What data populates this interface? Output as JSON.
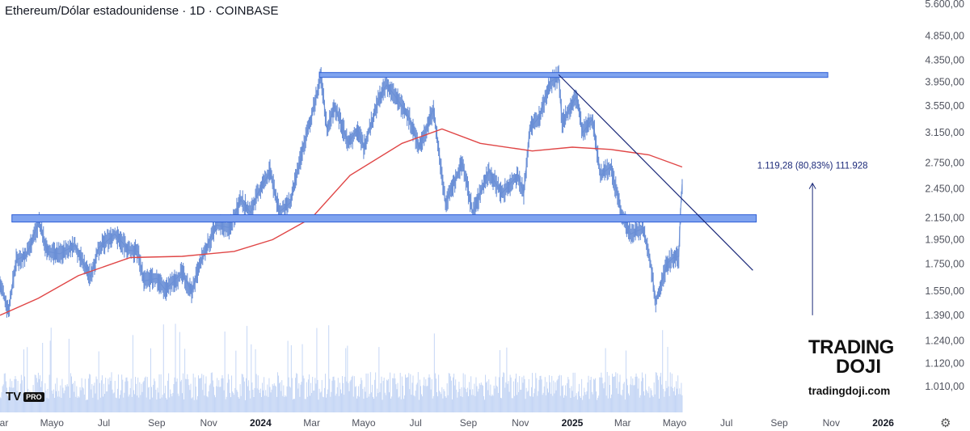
{
  "header": {
    "title": "Ethereum/Dólar estadounidense · 1D · COINBASE"
  },
  "watermark": {
    "tv_logo": "TV",
    "tv_badge": "PRO"
  },
  "brand": {
    "line1": "TRADING",
    "line2": "DOJI",
    "url": "tradingdoji.com"
  },
  "colors": {
    "price_line": "#2962ff",
    "candles": "#6a8fd6",
    "ma": "#e04646",
    "band_fill": "#7fa3ef",
    "band_stroke": "#2f5fd6",
    "trendline": "#1c2a7a",
    "volume": "#c5d6f5",
    "annotation": "#1c2a7a",
    "axis_text": "#50535e"
  },
  "chart_data": {
    "type": "line",
    "title": "Ethereum/Dólar estadounidense · 1D · COINBASE",
    "y_scale": "log",
    "ylim": [
      900,
      5700
    ],
    "y_ticks": [
      "5.600,00",
      "4.850,00",
      "4.350,00",
      "3.950,00",
      "3.550,00",
      "3.150,00",
      "2.750,00",
      "2.450,00",
      "2.150,00",
      "1.950,00",
      "1.750,00",
      "1.550,00",
      "1.390,00",
      "1.240,00",
      "1.120,00",
      "1.010,00"
    ],
    "y_tick_values": [
      5600,
      4850,
      4350,
      3950,
      3550,
      3150,
      2750,
      2450,
      2150,
      1950,
      1750,
      1550,
      1390,
      1240,
      1120,
      1010
    ],
    "x_ticks": [
      "Mar",
      "Mayo",
      "Jul",
      "Sep",
      "Nov",
      "2024",
      "Mar",
      "Mayo",
      "Jul",
      "Sep",
      "Nov",
      "2025",
      "Mar",
      "Mayo",
      "Jul",
      "Sep",
      "Nov",
      "2026"
    ],
    "x_tick_dates": [
      "2023-03-01",
      "2023-05-01",
      "2023-07-01",
      "2023-09-01",
      "2023-11-01",
      "2024-01-01",
      "2024-03-01",
      "2024-05-01",
      "2024-07-01",
      "2024-09-01",
      "2024-11-01",
      "2025-01-01",
      "2025-03-01",
      "2025-05-01",
      "2025-07-01",
      "2025-09-01",
      "2025-11-01",
      "2026-01-01"
    ],
    "x_range": [
      "2023-03-01",
      "2026-02-15"
    ],
    "series": [
      {
        "name": "",
        "values": [
          [
            "2023-03-01",
            1600
          ],
          [
            "2023-03-11",
            1420
          ],
          [
            "2023-03-20",
            1780
          ],
          [
            "2023-04-01",
            1820
          ],
          [
            "2023-04-16",
            2120
          ],
          [
            "2023-04-25",
            1850
          ],
          [
            "2023-05-10",
            1830
          ],
          [
            "2023-05-28",
            1900
          ],
          [
            "2023-06-15",
            1650
          ],
          [
            "2023-06-25",
            1880
          ],
          [
            "2023-07-14",
            2000
          ],
          [
            "2023-07-30",
            1860
          ],
          [
            "2023-08-10",
            1850
          ],
          [
            "2023-08-17",
            1620
          ],
          [
            "2023-09-01",
            1640
          ],
          [
            "2023-09-11",
            1560
          ],
          [
            "2023-10-01",
            1680
          ],
          [
            "2023-10-12",
            1540
          ],
          [
            "2023-10-24",
            1790
          ],
          [
            "2023-11-10",
            2080
          ],
          [
            "2023-11-25",
            2060
          ],
          [
            "2023-12-09",
            2330
          ],
          [
            "2023-12-20",
            2200
          ],
          [
            "2023-12-28",
            2380
          ],
          [
            "2024-01-12",
            2650
          ],
          [
            "2024-01-23",
            2210
          ],
          [
            "2024-02-05",
            2300
          ],
          [
            "2024-02-20",
            2950
          ],
          [
            "2024-03-01",
            3400
          ],
          [
            "2024-03-12",
            4050
          ],
          [
            "2024-03-19",
            3200
          ],
          [
            "2024-03-28",
            3550
          ],
          [
            "2024-04-13",
            3000
          ],
          [
            "2024-04-24",
            3200
          ],
          [
            "2024-05-01",
            2950
          ],
          [
            "2024-05-20",
            3700
          ],
          [
            "2024-05-28",
            3900
          ],
          [
            "2024-06-15",
            3550
          ],
          [
            "2024-06-24",
            3350
          ],
          [
            "2024-07-05",
            2950
          ],
          [
            "2024-07-22",
            3500
          ],
          [
            "2024-08-05",
            2300
          ],
          [
            "2024-08-25",
            2750
          ],
          [
            "2024-09-06",
            2200
          ],
          [
            "2024-09-25",
            2650
          ],
          [
            "2024-10-10",
            2400
          ],
          [
            "2024-10-29",
            2600
          ],
          [
            "2024-11-05",
            2400
          ],
          [
            "2024-11-12",
            3200
          ],
          [
            "2024-11-24",
            3400
          ],
          [
            "2024-12-06",
            3950
          ],
          [
            "2024-12-16",
            4050
          ],
          [
            "2024-12-20",
            3300
          ],
          [
            "2025-01-06",
            3700
          ],
          [
            "2025-01-13",
            3150
          ],
          [
            "2025-01-25",
            3350
          ],
          [
            "2025-02-03",
            2600
          ],
          [
            "2025-02-15",
            2700
          ],
          [
            "2025-02-28",
            2200
          ],
          [
            "2025-03-10",
            2000
          ],
          [
            "2025-03-25",
            2050
          ],
          [
            "2025-04-02",
            1800
          ],
          [
            "2025-04-09",
            1480
          ],
          [
            "2025-04-22",
            1750
          ],
          [
            "2025-04-30",
            1800
          ],
          [
            "2025-05-06",
            1810
          ],
          [
            "2025-05-08",
            2200
          ],
          [
            "2025-05-10",
            2500
          ]
        ]
      },
      {
        "name": "",
        "type": "moving_average",
        "values": [
          [
            "2023-03-01",
            1390
          ],
          [
            "2023-04-15",
            1500
          ],
          [
            "2023-06-01",
            1660
          ],
          [
            "2023-08-01",
            1800
          ],
          [
            "2023-10-01",
            1810
          ],
          [
            "2023-12-01",
            1850
          ],
          [
            "2024-01-15",
            1950
          ],
          [
            "2024-03-01",
            2150
          ],
          [
            "2024-04-15",
            2600
          ],
          [
            "2024-06-15",
            3000
          ],
          [
            "2024-08-01",
            3200
          ],
          [
            "2024-09-15",
            3000
          ],
          [
            "2024-11-15",
            2900
          ],
          [
            "2025-01-01",
            2950
          ],
          [
            "2025-02-15",
            2920
          ],
          [
            "2025-04-01",
            2850
          ],
          [
            "2025-05-10",
            2700
          ]
        ]
      }
    ],
    "annotations": [
      {
        "type": "horizontal_band",
        "from": "2024-03-10",
        "to": "2025-10-28",
        "low": 4050,
        "high": 4120
      },
      {
        "type": "horizontal_band",
        "from": "2023-03-15",
        "to": "2025-08-05",
        "low": 2110,
        "high": 2180
      },
      {
        "type": "trendline",
        "points": [
          [
            "2024-12-16",
            4080
          ],
          [
            "2025-08-01",
            1700
          ]
        ]
      },
      {
        "type": "measure_arrow",
        "from_value": 1390,
        "to_value": 2510,
        "date": "2025-10-10",
        "label": "1.119,28 (80,83%) 111.928"
      }
    ]
  }
}
